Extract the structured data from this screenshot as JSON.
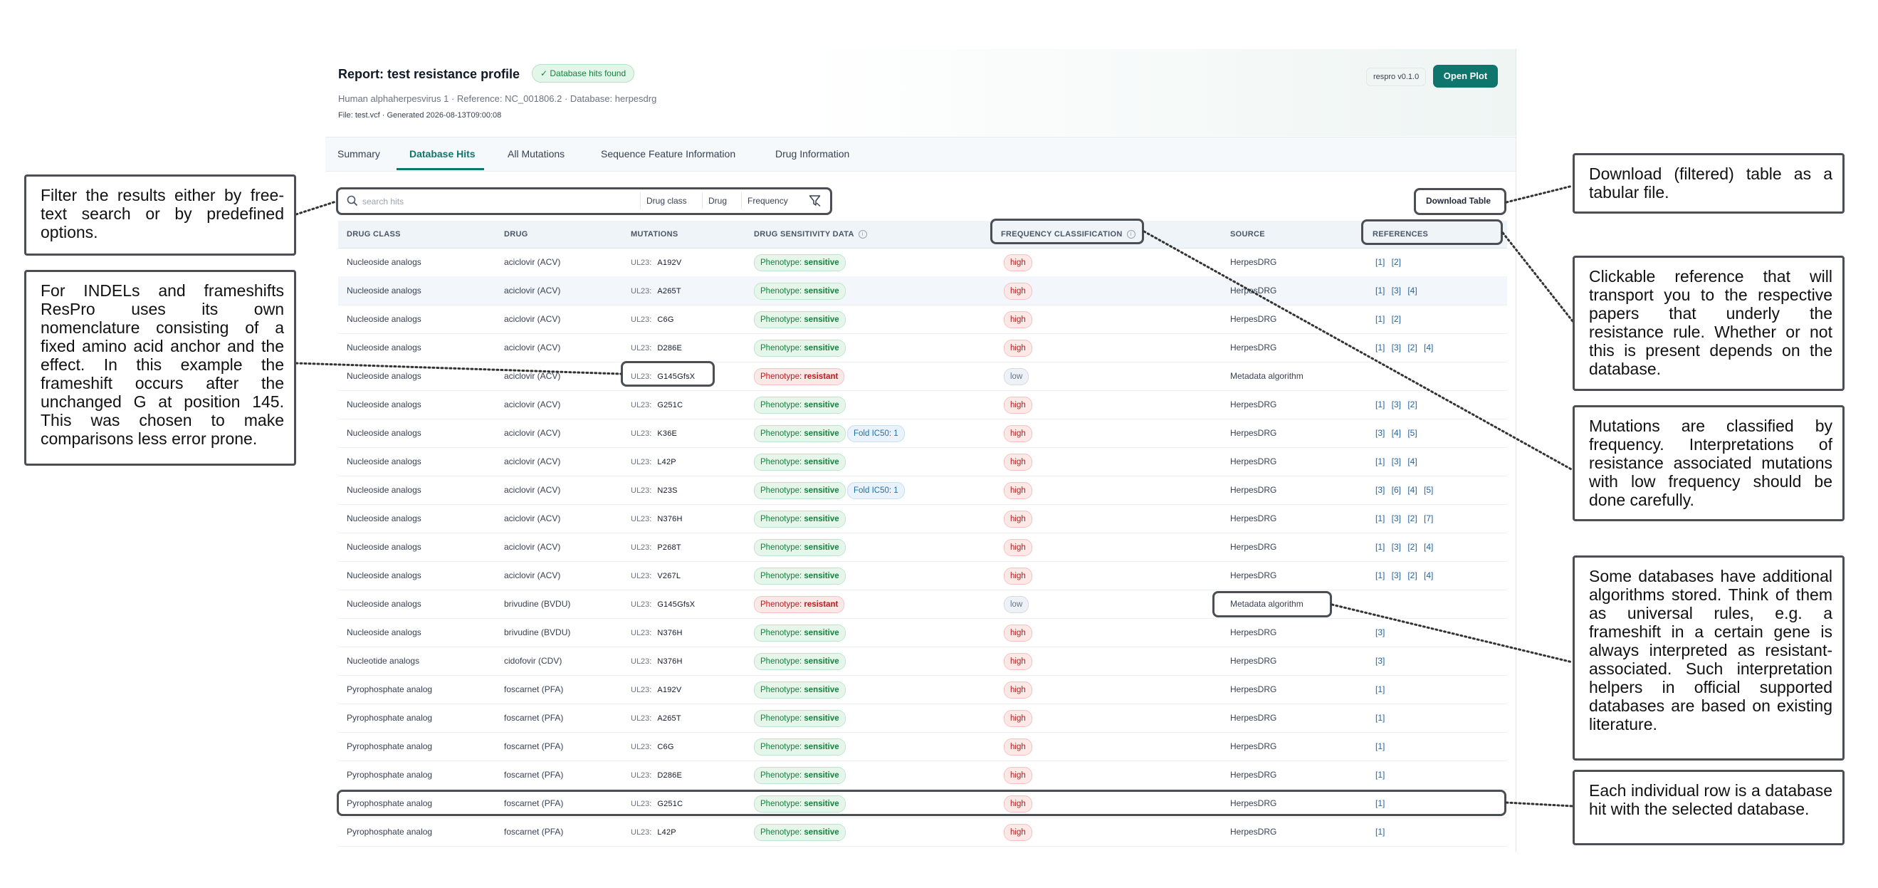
{
  "report": {
    "title": "Report: test resistance profile",
    "badge": "✓ Database hits found",
    "meta_line1": "Human alphaherpesvirus 1 · Reference: NC_001806.2 · Database: herpesdrg",
    "meta_line2": "File: test.vcf · Generated 2026-08-13T09:00:08",
    "version": "respro v0.1.0",
    "open_plot": "Open Plot"
  },
  "tabs": [
    "Summary",
    "Database Hits",
    "All Mutations",
    "Sequence Feature Information",
    "Drug Information"
  ],
  "active_tab": "Database Hits",
  "toolbar": {
    "search_placeholder": "search hits",
    "filters": [
      "Drug class",
      "Drug",
      "Frequency"
    ],
    "download": "Download Table"
  },
  "table": {
    "columns": [
      "DRUG CLASS",
      "DRUG",
      "MUTATIONS",
      "DRUG SENSITIVITY DATA",
      "FREQUENCY CLASSIFICATION",
      "SOURCE",
      "REFERENCES"
    ],
    "rows": [
      {
        "drug_class": "Nucleoside analogs",
        "drug": "aciclovir (ACV)",
        "gene": "UL23:",
        "mutation": "A192V",
        "phenotype_label": "Phenotype:",
        "phenotype": "sensitive",
        "fold": "",
        "frequency": "high",
        "source": "HerpesDRG",
        "refs": "[1] [2]"
      },
      {
        "drug_class": "Nucleoside analogs",
        "drug": "aciclovir (ACV)",
        "gene": "UL23:",
        "mutation": "A265T",
        "phenotype_label": "Phenotype:",
        "phenotype": "sensitive",
        "fold": "",
        "frequency": "high",
        "source": "HerpesDRG",
        "refs": "[1] [3] [4]"
      },
      {
        "drug_class": "Nucleoside analogs",
        "drug": "aciclovir (ACV)",
        "gene": "UL23:",
        "mutation": "C6G",
        "phenotype_label": "Phenotype:",
        "phenotype": "sensitive",
        "fold": "",
        "frequency": "high",
        "source": "HerpesDRG",
        "refs": "[1] [2]"
      },
      {
        "drug_class": "Nucleoside analogs",
        "drug": "aciclovir (ACV)",
        "gene": "UL23:",
        "mutation": "D286E",
        "phenotype_label": "Phenotype:",
        "phenotype": "sensitive",
        "fold": "",
        "frequency": "high",
        "source": "HerpesDRG",
        "refs": "[1] [3] [2] [4]"
      },
      {
        "drug_class": "Nucleoside analogs",
        "drug": "aciclovir (ACV)",
        "gene": "UL23:",
        "mutation": "G145GfsX",
        "phenotype_label": "Phenotype:",
        "phenotype": "resistant",
        "fold": "",
        "frequency": "low",
        "source": "Metadata algorithm",
        "refs": ""
      },
      {
        "drug_class": "Nucleoside analogs",
        "drug": "aciclovir (ACV)",
        "gene": "UL23:",
        "mutation": "G251C",
        "phenotype_label": "Phenotype:",
        "phenotype": "sensitive",
        "fold": "",
        "frequency": "high",
        "source": "HerpesDRG",
        "refs": "[1] [3] [2]"
      },
      {
        "drug_class": "Nucleoside analogs",
        "drug": "aciclovir (ACV)",
        "gene": "UL23:",
        "mutation": "K36E",
        "phenotype_label": "Phenotype:",
        "phenotype": "sensitive",
        "fold": "Fold IC50: 1",
        "frequency": "high",
        "source": "HerpesDRG",
        "refs": "[3] [4] [5]"
      },
      {
        "drug_class": "Nucleoside analogs",
        "drug": "aciclovir (ACV)",
        "gene": "UL23:",
        "mutation": "L42P",
        "phenotype_label": "Phenotype:",
        "phenotype": "sensitive",
        "fold": "",
        "frequency": "high",
        "source": "HerpesDRG",
        "refs": "[1] [3] [4]"
      },
      {
        "drug_class": "Nucleoside analogs",
        "drug": "aciclovir (ACV)",
        "gene": "UL23:",
        "mutation": "N23S",
        "phenotype_label": "Phenotype:",
        "phenotype": "sensitive",
        "fold": "Fold IC50: 1",
        "frequency": "high",
        "source": "HerpesDRG",
        "refs": "[3] [6] [4] [5]"
      },
      {
        "drug_class": "Nucleoside analogs",
        "drug": "aciclovir (ACV)",
        "gene": "UL23:",
        "mutation": "N376H",
        "phenotype_label": "Phenotype:",
        "phenotype": "sensitive",
        "fold": "",
        "frequency": "high",
        "source": "HerpesDRG",
        "refs": "[1] [3] [2] [7]"
      },
      {
        "drug_class": "Nucleoside analogs",
        "drug": "aciclovir (ACV)",
        "gene": "UL23:",
        "mutation": "P268T",
        "phenotype_label": "Phenotype:",
        "phenotype": "sensitive",
        "fold": "",
        "frequency": "high",
        "source": "HerpesDRG",
        "refs": "[1] [3] [2] [4]"
      },
      {
        "drug_class": "Nucleoside analogs",
        "drug": "aciclovir (ACV)",
        "gene": "UL23:",
        "mutation": "V267L",
        "phenotype_label": "Phenotype:",
        "phenotype": "sensitive",
        "fold": "",
        "frequency": "high",
        "source": "HerpesDRG",
        "refs": "[1] [3] [2] [4]"
      },
      {
        "drug_class": "Nucleoside analogs",
        "drug": "brivudine (BVDU)",
        "gene": "UL23:",
        "mutation": "G145GfsX",
        "phenotype_label": "Phenotype:",
        "phenotype": "resistant",
        "fold": "",
        "frequency": "low",
        "source": "Metadata algorithm",
        "refs": ""
      },
      {
        "drug_class": "Nucleoside analogs",
        "drug": "brivudine (BVDU)",
        "gene": "UL23:",
        "mutation": "N376H",
        "phenotype_label": "Phenotype:",
        "phenotype": "sensitive",
        "fold": "",
        "frequency": "high",
        "source": "HerpesDRG",
        "refs": "[3]"
      },
      {
        "drug_class": "Nucleotide analogs",
        "drug": "cidofovir (CDV)",
        "gene": "UL23:",
        "mutation": "N376H",
        "phenotype_label": "Phenotype:",
        "phenotype": "sensitive",
        "fold": "",
        "frequency": "high",
        "source": "HerpesDRG",
        "refs": "[3]"
      },
      {
        "drug_class": "Pyrophosphate analog",
        "drug": "foscarnet (PFA)",
        "gene": "UL23:",
        "mutation": "A192V",
        "phenotype_label": "Phenotype:",
        "phenotype": "sensitive",
        "fold": "",
        "frequency": "high",
        "source": "HerpesDRG",
        "refs": "[1]"
      },
      {
        "drug_class": "Pyrophosphate analog",
        "drug": "foscarnet (PFA)",
        "gene": "UL23:",
        "mutation": "A265T",
        "phenotype_label": "Phenotype:",
        "phenotype": "sensitive",
        "fold": "",
        "frequency": "high",
        "source": "HerpesDRG",
        "refs": "[1]"
      },
      {
        "drug_class": "Pyrophosphate analog",
        "drug": "foscarnet (PFA)",
        "gene": "UL23:",
        "mutation": "C6G",
        "phenotype_label": "Phenotype:",
        "phenotype": "sensitive",
        "fold": "",
        "frequency": "high",
        "source": "HerpesDRG",
        "refs": "[1]"
      },
      {
        "drug_class": "Pyrophosphate analog",
        "drug": "foscarnet (PFA)",
        "gene": "UL23:",
        "mutation": "D286E",
        "phenotype_label": "Phenotype:",
        "phenotype": "sensitive",
        "fold": "",
        "frequency": "high",
        "source": "HerpesDRG",
        "refs": "[1]"
      },
      {
        "drug_class": "Pyrophosphate analog",
        "drug": "foscarnet (PFA)",
        "gene": "UL23:",
        "mutation": "G251C",
        "phenotype_label": "Phenotype:",
        "phenotype": "sensitive",
        "fold": "",
        "frequency": "high",
        "source": "HerpesDRG",
        "refs": "[1]"
      },
      {
        "drug_class": "Pyrophosphate analog",
        "drug": "foscarnet (PFA)",
        "gene": "UL23:",
        "mutation": "L42P",
        "phenotype_label": "Phenotype:",
        "phenotype": "sensitive",
        "fold": "",
        "frequency": "high",
        "source": "HerpesDRG",
        "refs": "[1]"
      }
    ]
  },
  "callouts": {
    "filter": "Filter the results either by free-text search or by predefined options.",
    "indel": "For INDELs and frameshifts ResPro uses its own nomenclature consisting of a fixed amino acid anchor and the effect. In this example the frameshift occurs after the unchanged G at position 145. This was chosen to make comparisons less error prone.",
    "download": "Download (filtered) table as a tabular file.",
    "references": "Clickable reference that will transport you to the respective papers that underly the resistance rule. Whether or not this is present depends on the database.",
    "frequency": "Mutations are classified by frequency. Interpretations of resistance associated mutations with low frequency should be done carefully.",
    "algorithms": "Some databases have additional algorithms stored. Think of them as universal rules, e.g. a frameshift in a certain gene is always interpreted as resistant-associated. Such interpretation helpers in official supported databases are based on existing literature.",
    "row": "Each individual row is a database hit with the selected database."
  },
  "colors": {
    "accent": "#0f766e",
    "sensitive": "#15803d",
    "resistant": "#b91c1c",
    "link": "#2563a0",
    "annotation": "#4b4f54"
  }
}
